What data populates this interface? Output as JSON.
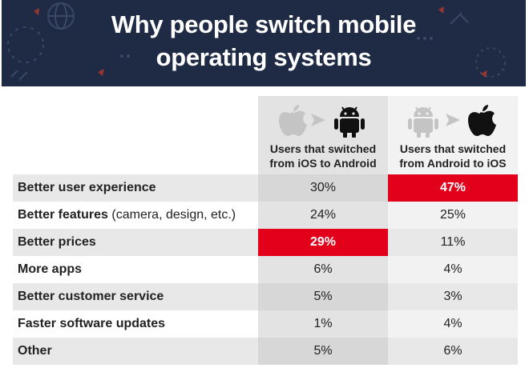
{
  "title_line1": "Why people switch mobile",
  "title_line2": "operating systems",
  "chart_data": {
    "type": "table",
    "title": "Why people switch mobile operating systems",
    "columns": [
      {
        "name": "Users that switched from iOS to Android",
        "line1": "Users that switched",
        "line2": "from iOS to Android",
        "from_icon": "apple-icon",
        "to_icon": "android-icon"
      },
      {
        "name": "Users that switched from Android to iOS",
        "line1": "Users that switched",
        "line2": "from Android to iOS",
        "from_icon": "android-icon",
        "to_icon": "apple-icon"
      }
    ],
    "rows": [
      {
        "label": "Better user experience",
        "label_extra": "",
        "ios_to_android": "30%",
        "android_to_ios": "47%",
        "highlight": "android_to_ios"
      },
      {
        "label": "Better features",
        "label_extra": "(camera, design, etc.)",
        "ios_to_android": "24%",
        "android_to_ios": "25%",
        "highlight": ""
      },
      {
        "label": "Better prices",
        "label_extra": "",
        "ios_to_android": "29%",
        "android_to_ios": "11%",
        "highlight": "ios_to_android"
      },
      {
        "label": "More apps",
        "label_extra": "",
        "ios_to_android": "6%",
        "android_to_ios": "4%",
        "highlight": ""
      },
      {
        "label": "Better customer service",
        "label_extra": "",
        "ios_to_android": "5%",
        "android_to_ios": "3%",
        "highlight": ""
      },
      {
        "label": "Faster software updates",
        "label_extra": "",
        "ios_to_android": "1%",
        "android_to_ios": "4%",
        "highlight": ""
      },
      {
        "label": "Other",
        "label_extra": "",
        "ios_to_android": "5%",
        "android_to_ios": "6%",
        "highlight": ""
      }
    ]
  },
  "colors": {
    "banner": "#1f2a44",
    "highlight": "#e3001b",
    "icon_faded": "#c4c4c4",
    "icon_dark": "#111111"
  }
}
